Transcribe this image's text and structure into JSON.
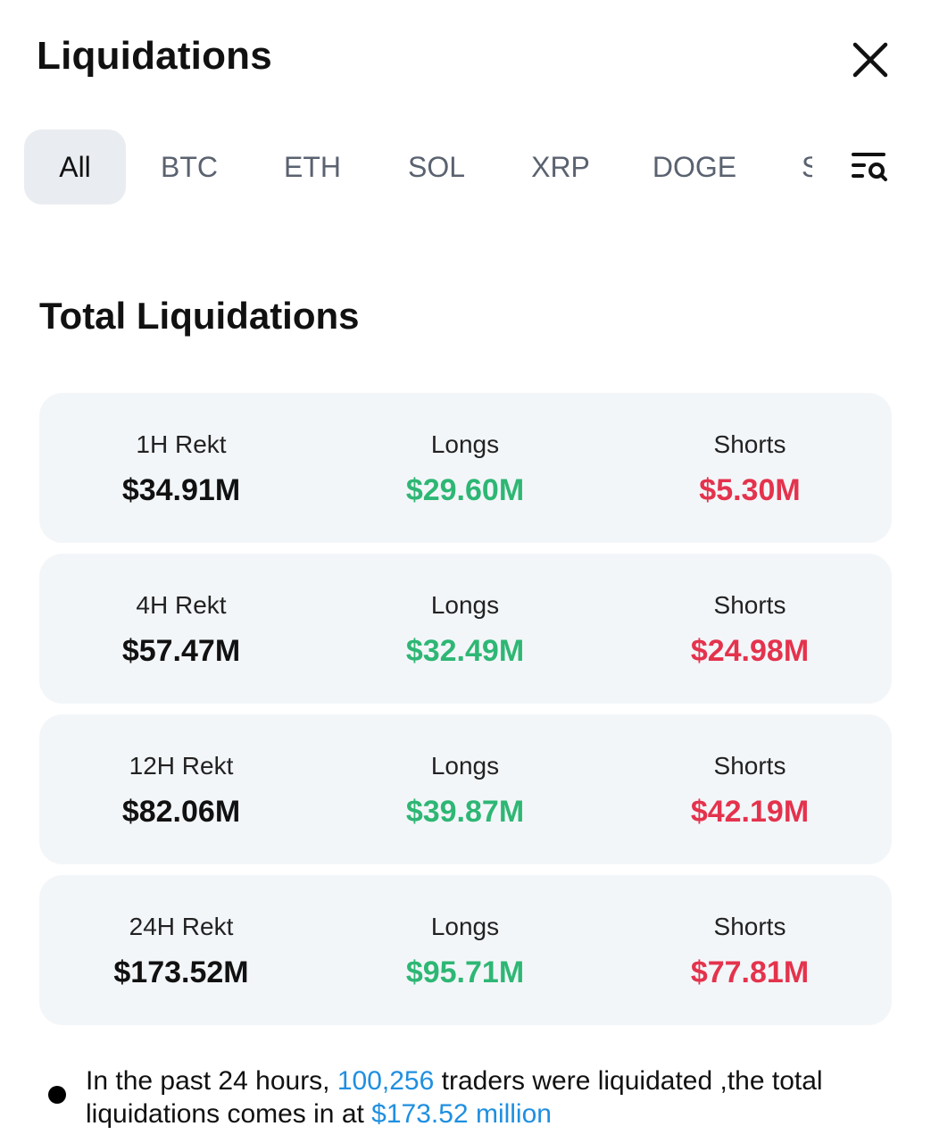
{
  "header": {
    "title": "Liquidations",
    "close_icon": "close-icon"
  },
  "tabs": {
    "items": [
      {
        "label": "All",
        "active": true
      },
      {
        "label": "BTC",
        "active": false
      },
      {
        "label": "ETH",
        "active": false
      },
      {
        "label": "SOL",
        "active": false
      },
      {
        "label": "XRP",
        "active": false
      },
      {
        "label": "DOGE",
        "active": false
      },
      {
        "label": "S",
        "active": false
      }
    ],
    "filter_icon": "filter-search-icon"
  },
  "section": {
    "title": "Total Liquidations"
  },
  "rows": [
    {
      "period_label": "1H Rekt",
      "total": "$34.91M",
      "longs_label": "Longs",
      "longs": "$29.60M",
      "shorts_label": "Shorts",
      "shorts": "$5.30M"
    },
    {
      "period_label": "4H Rekt",
      "total": "$57.47M",
      "longs_label": "Longs",
      "longs": "$32.49M",
      "shorts_label": "Shorts",
      "shorts": "$24.98M"
    },
    {
      "period_label": "12H Rekt",
      "total": "$82.06M",
      "longs_label": "Longs",
      "longs": "$39.87M",
      "shorts_label": "Shorts",
      "shorts": "$42.19M"
    },
    {
      "period_label": "24H Rekt",
      "total": "$173.52M",
      "longs_label": "Longs",
      "longs": "$95.71M",
      "shorts_label": "Shorts",
      "shorts": "$77.81M"
    }
  ],
  "note": {
    "prefix": "In the past 24 hours, ",
    "traders_count": "100,256",
    "middle": " traders were liquidated ,the total liquidations comes in at ",
    "total_amount": "$173.52 million"
  },
  "colors": {
    "long": "#2eb774",
    "short": "#e4334d",
    "highlight": "#1f8fe0",
    "card_bg": "#f3f6f9",
    "active_tab_bg": "#e9ecf0"
  }
}
